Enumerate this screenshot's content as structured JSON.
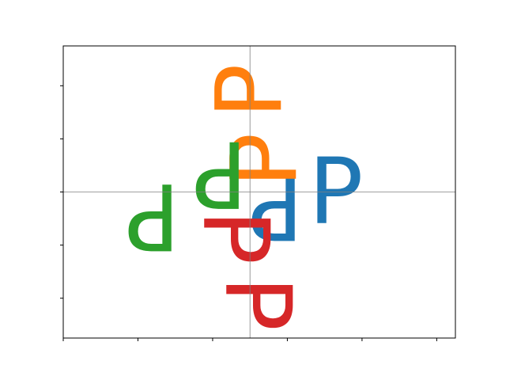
{
  "chart_data": {
    "type": "scatter",
    "title": "",
    "xlabel": "",
    "ylabel": "",
    "xlim": [
      -2.5,
      2.75
    ],
    "ylim": [
      -2.75,
      2.75
    ],
    "xticks": [
      -2.5,
      -1.5,
      -0.5,
      0.5,
      1.5,
      2.5
    ],
    "yticks": [
      -3,
      -2,
      -1,
      0,
      1,
      2
    ],
    "tick_labels_shown": false,
    "reference_lines": {
      "x": 0,
      "y": 0,
      "color": "#808080"
    },
    "grid": false,
    "legend": false,
    "series": [
      {
        "color": "#1f77b4",
        "marks": [
          {
            "text": "P",
            "x": 1.15,
            "y": 0,
            "rotation": 0
          },
          {
            "text": "P",
            "x": 0.35,
            "y": -0.25,
            "rotation": 180
          }
        ]
      },
      {
        "color": "#ff7f0e",
        "marks": [
          {
            "text": "P",
            "x": 0,
            "y": 1.9,
            "rotation": 270
          },
          {
            "text": "P",
            "x": 0.2,
            "y": 0.6,
            "rotation": 270
          }
        ]
      },
      {
        "color": "#2ca02c",
        "marks": [
          {
            "text": "P",
            "x": -1.3,
            "y": -0.45,
            "rotation": 180
          },
          {
            "text": "P",
            "x": -0.4,
            "y": 0.35,
            "rotation": 180
          }
        ]
      },
      {
        "color": "#d62728",
        "marks": [
          {
            "text": "P",
            "x": 0.1,
            "y": -2.1,
            "rotation": 90
          },
          {
            "text": "P",
            "x": -0.2,
            "y": -0.85,
            "rotation": 90
          }
        ]
      }
    ]
  }
}
